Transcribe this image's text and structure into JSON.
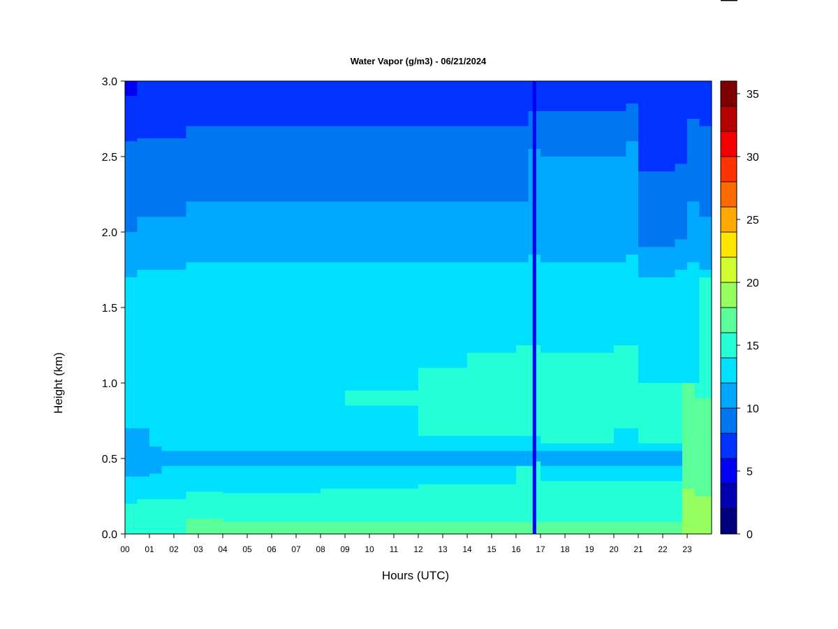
{
  "chart_data": {
    "type": "heatmap",
    "title": "Water Vapor (g/m3) - 06/21/2024",
    "xlabel": "Hours (UTC)",
    "ylabel": "Height (km)",
    "xlim": [
      0,
      24
    ],
    "ylim": [
      0,
      3
    ],
    "x_ticks": [
      "00",
      "01",
      "02",
      "03",
      "04",
      "05",
      "06",
      "07",
      "08",
      "09",
      "10",
      "11",
      "12",
      "13",
      "14",
      "15",
      "16",
      "17",
      "18",
      "19",
      "20",
      "21",
      "22",
      "23"
    ],
    "y_ticks": [
      "0.0",
      "0.5",
      "1.0",
      "1.5",
      "2.0",
      "2.5",
      "3.0"
    ],
    "colorbar": {
      "min": 0,
      "max": 36,
      "step": 2.5,
      "tick_values": [
        0,
        5,
        10,
        15,
        20,
        25,
        30,
        35
      ],
      "tick_labels": [
        "0",
        "5",
        "10",
        "15",
        "20",
        "25",
        "30",
        "35"
      ],
      "colors": [
        "#00007F",
        "#0000B2",
        "#0000F5",
        "#0033FF",
        "#0077F0",
        "#00A8FF",
        "#00E1FF",
        "#25FFD5",
        "#5AFF99",
        "#96FF5F",
        "#D0FF2D",
        "#FFE600",
        "#FFAA00",
        "#FF6A00",
        "#FF3300",
        "#F50000",
        "#B80000",
        "#7F0000"
      ]
    },
    "color_regions": [
      {
        "band_index": 2,
        "bands": [
          [
            0.0,
            2.9,
            3.0
          ],
          [
            2.5,
            2.98,
            3.0
          ]
        ]
      },
      {
        "band_index": 3,
        "bands": [
          [
            0.0,
            2.6,
            2.9
          ],
          [
            0.5,
            2.62,
            3.0
          ],
          [
            2.5,
            2.7,
            3.0
          ],
          [
            16.5,
            2.8,
            3.0
          ],
          [
            17.0,
            2.8,
            3.0
          ],
          [
            20.5,
            2.85,
            3.0
          ],
          [
            21.0,
            2.4,
            3.0
          ],
          [
            22.5,
            2.45,
            3.0
          ],
          [
            23.0,
            2.75,
            3.0
          ],
          [
            23.5,
            2.7,
            3.0
          ]
        ]
      },
      {
        "band_index": 4,
        "bands": [
          [
            0.0,
            2.0,
            2.6
          ],
          [
            0.5,
            2.1,
            2.62
          ],
          [
            2.5,
            2.2,
            2.7
          ],
          [
            16.5,
            2.55,
            2.8
          ],
          [
            17.0,
            2.5,
            2.8
          ],
          [
            20.5,
            2.6,
            2.85
          ],
          [
            21.0,
            1.9,
            2.4
          ],
          [
            22.5,
            1.95,
            2.45
          ],
          [
            23.0,
            2.2,
            2.75
          ],
          [
            23.5,
            2.1,
            2.7
          ]
        ]
      },
      {
        "band_index": 5,
        "bands": [
          [
            0.0,
            1.7,
            2.0
          ],
          [
            0.5,
            1.75,
            2.1
          ],
          [
            2.5,
            1.8,
            2.2
          ],
          [
            16.5,
            1.85,
            2.55
          ],
          [
            17.0,
            1.8,
            2.5
          ],
          [
            20.5,
            1.85,
            2.6
          ],
          [
            21.0,
            1.7,
            1.9
          ],
          [
            22.5,
            1.75,
            1.95
          ],
          [
            23.0,
            1.8,
            2.2
          ],
          [
            23.5,
            1.75,
            2.1
          ]
        ]
      },
      {
        "band_index": 5,
        "bands": [
          [
            0.0,
            0.38,
            0.7
          ],
          [
            1.0,
            0.4,
            0.58
          ],
          [
            1.5,
            0.45,
            0.55
          ]
        ]
      },
      {
        "band_index": 7,
        "bands": [
          [
            0.0,
            0.0,
            0.2
          ],
          [
            0.5,
            0.0,
            0.23
          ],
          [
            2.5,
            0.0,
            0.28
          ],
          [
            4.0,
            0.0,
            0.27
          ],
          [
            8.0,
            0.0,
            0.3
          ],
          [
            12.0,
            0.0,
            0.33
          ],
          [
            16.0,
            0.0,
            0.45
          ],
          [
            16.7,
            0.0,
            0.48
          ],
          [
            17.0,
            0.0,
            0.35
          ],
          [
            22.5,
            0.0,
            0.35
          ],
          [
            23.5,
            0.0,
            1.7
          ]
        ]
      },
      {
        "band_index": 7,
        "bands": [
          [
            9.0,
            0.85,
            0.95
          ],
          [
            12.0,
            0.65,
            1.1
          ],
          [
            14.0,
            0.65,
            1.2
          ],
          [
            16.0,
            0.65,
            1.25
          ],
          [
            17.0,
            0.6,
            1.2
          ],
          [
            20.0,
            0.7,
            1.25
          ],
          [
            21.0,
            0.6,
            1.0
          ]
        ]
      },
      {
        "band_index": 8,
        "bands": [
          [
            2.5,
            0.0,
            0.1
          ],
          [
            3.0,
            0.0,
            0.1
          ],
          [
            4.0,
            0.0,
            0.08
          ],
          [
            22.8,
            0.0,
            1.0
          ],
          [
            23.3,
            0.0,
            0.9
          ]
        ]
      },
      {
        "band_index": 9,
        "bands": [
          [
            22.8,
            0.0,
            0.3
          ],
          [
            23.3,
            0.0,
            0.25
          ]
        ]
      }
    ],
    "data_gap": {
      "x": 16.75,
      "color_band_index": 2
    }
  }
}
